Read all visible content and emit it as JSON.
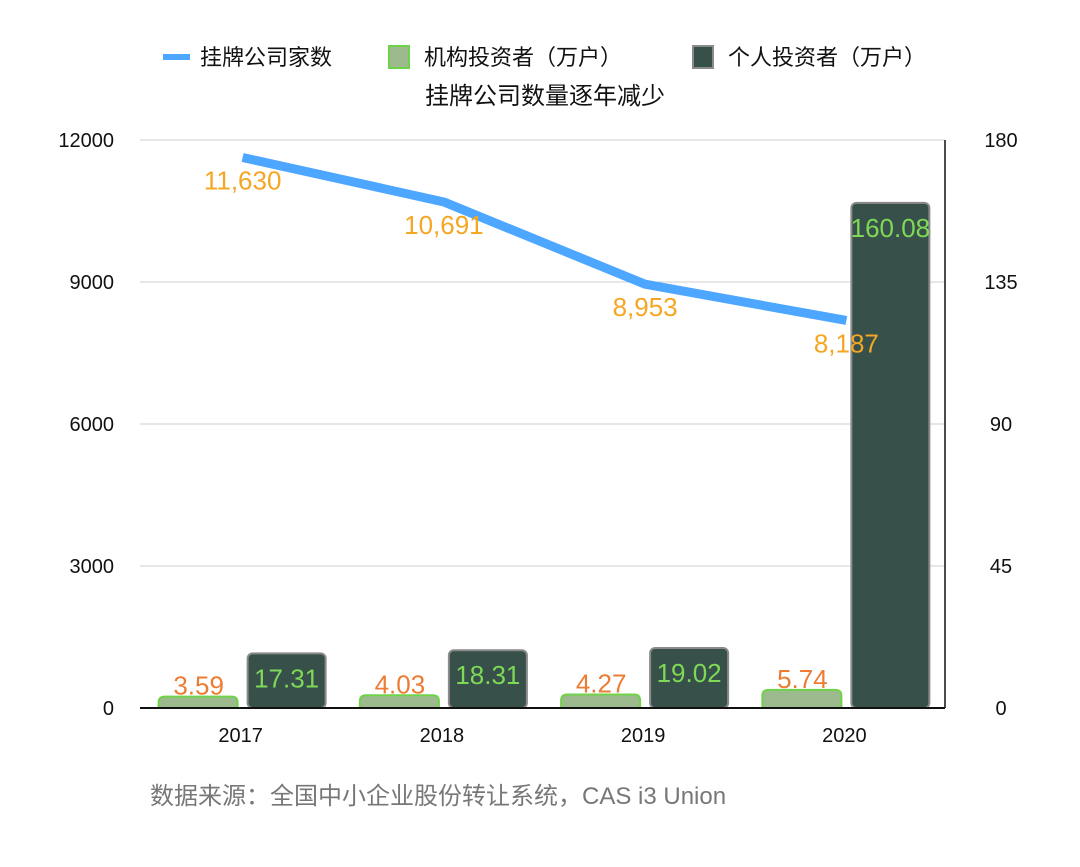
{
  "chart_data": {
    "type": "bar",
    "title": "挂牌公司数量逐年减少",
    "categories": [
      "2017",
      "2018",
      "2019",
      "2020"
    ],
    "series": [
      {
        "name": "挂牌公司家数",
        "kind": "line",
        "axis": "left",
        "values": [
          11630,
          10691,
          8953,
          8187
        ],
        "labels": [
          "11,630",
          "10,691",
          "8,953",
          "8,187"
        ],
        "color": "#4da6ff",
        "label_color": "#f5a623"
      },
      {
        "name": "机构投资者（万户）",
        "kind": "bar",
        "axis": "right",
        "values": [
          3.59,
          4.03,
          4.27,
          5.74
        ],
        "labels": [
          "3.59",
          "4.03",
          "4.27",
          "5.74"
        ],
        "color": "#9dba8e",
        "border_color": "#6fd34a",
        "label_color": "#ec7c34"
      },
      {
        "name": "个人投资者（万户）",
        "kind": "bar",
        "axis": "right",
        "values": [
          17.31,
          18.31,
          19.02,
          160.08
        ],
        "labels": [
          "17.31",
          "18.31",
          "19.02",
          "160.08"
        ],
        "color": "#37504a",
        "border_color": "#8a8a8a",
        "label_color": "#7ed957"
      }
    ],
    "left_axis": {
      "ylim": [
        0,
        12000
      ],
      "ticks": [
        "0",
        "3000",
        "6000",
        "9000",
        "12000"
      ]
    },
    "right_axis": {
      "ylim": [
        0,
        180
      ],
      "ticks": [
        "0",
        "45",
        "90",
        "135",
        "180"
      ]
    },
    "grid": true,
    "legend_placement": "top"
  },
  "source": "数据来源：全国中小企业股份转让系统，CAS i3 Union"
}
